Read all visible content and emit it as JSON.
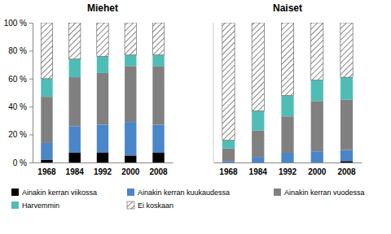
{
  "chart_data": [
    {
      "type": "bar",
      "stacked": true,
      "title": "Miehet",
      "categories": [
        "1968",
        "1984",
        "1992",
        "2000",
        "2008"
      ],
      "ylim": [
        0,
        100
      ],
      "yticks": [
        {
          "value": 0,
          "label": "0 %"
        },
        {
          "value": 20,
          "label": "20 %"
        },
        {
          "value": 40,
          "label": "40 %"
        },
        {
          "value": 60,
          "label": "60 %"
        },
        {
          "value": 80,
          "label": "80 %"
        },
        {
          "value": 100,
          "label": "100 %"
        }
      ],
      "legend": "bottom",
      "series": [
        {
          "name": "Ainakin kerran viikossa",
          "color": "#000000",
          "values": [
            2,
            7,
            7,
            5,
            7
          ]
        },
        {
          "name": "Ainakin kerran kuukaudessa",
          "color": "#4a86c8",
          "values": [
            12,
            19,
            20,
            24,
            20
          ]
        },
        {
          "name": "Ainakin kerran vuodessa",
          "color": "#808080",
          "values": [
            33,
            35,
            37,
            40,
            42
          ]
        },
        {
          "name": "Harvemmin",
          "color": "#4fbdb5",
          "values": [
            13,
            13,
            12,
            8,
            8
          ]
        },
        {
          "name": "Ei koskaan",
          "color": "#ffffff",
          "values": [
            40,
            26,
            24,
            23,
            23
          ]
        }
      ]
    },
    {
      "type": "bar",
      "stacked": true,
      "title": "Naiset",
      "categories": [
        "1968",
        "1984",
        "1992",
        "2000",
        "2008"
      ],
      "ylim": [
        0,
        100
      ],
      "tick_labels": "x",
      "series": [
        {
          "color": "#000000",
          "values": [
            0,
            0,
            0,
            0,
            1
          ]
        },
        {
          "color": "#4a86c8",
          "values": [
            1,
            4,
            7,
            8,
            8
          ]
        },
        {
          "color": "#808080",
          "values": [
            9,
            19,
            26,
            36,
            36
          ]
        },
        {
          "color": "#4fbdb5",
          "values": [
            6,
            14,
            15,
            15,
            16
          ]
        },
        {
          "color": "#ffffff",
          "values": [
            84,
            63,
            52,
            41,
            39
          ]
        }
      ]
    }
  ]
}
